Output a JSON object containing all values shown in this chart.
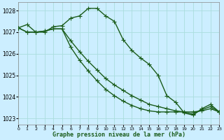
{
  "title": "Graphe pression niveau de la mer (hPa)",
  "background_color": "#cceeff",
  "grid_color": "#aadddd",
  "line_color": "#1a5c1a",
  "series1": [
    1027.2,
    1027.35,
    1027.0,
    1027.0,
    1027.25,
    1027.3,
    1027.65,
    1027.75,
    1028.1,
    1028.1,
    1027.75,
    1027.5,
    1026.65,
    1026.15,
    1025.8,
    1025.5,
    1025.0,
    1024.05,
    1023.75,
    1023.25,
    1023.15,
    1023.45,
    1023.65,
    1023.3
  ],
  "series2": [
    1027.2,
    1027.0,
    1027.0,
    1027.05,
    1027.15,
    1027.15,
    1026.6,
    1026.1,
    1025.65,
    1025.25,
    1024.85,
    1024.55,
    1024.3,
    1024.05,
    1023.85,
    1023.65,
    1023.55,
    1023.45,
    1023.35,
    1023.3,
    1023.2,
    1023.4,
    1023.55,
    1023.3
  ],
  "series3": [
    1027.2,
    1027.0,
    1027.0,
    1027.05,
    1027.15,
    1027.15,
    1026.3,
    1025.7,
    1025.2,
    1024.75,
    1024.35,
    1024.05,
    1023.8,
    1023.6,
    1023.45,
    1023.35,
    1023.3,
    1023.3,
    1023.3,
    1023.3,
    1023.3,
    1023.35,
    1023.45,
    1023.3
  ],
  "xlim": [
    0,
    23
  ],
  "ylim": [
    1022.7,
    1028.4
  ],
  "yticks": [
    1023,
    1024,
    1025,
    1026,
    1027,
    1028
  ],
  "xticks": [
    0,
    1,
    2,
    3,
    4,
    5,
    6,
    7,
    8,
    9,
    10,
    11,
    12,
    13,
    14,
    15,
    16,
    17,
    18,
    19,
    20,
    21,
    22,
    23
  ],
  "marker": "+",
  "markersize": 4,
  "linewidth": 1.0
}
